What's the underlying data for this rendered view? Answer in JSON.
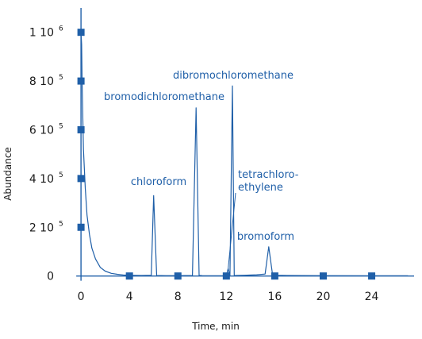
{
  "chart_data": {
    "type": "line",
    "xlabel": "Time, min",
    "ylabel": "Abundance",
    "xlim": [
      -0.4,
      27.5
    ],
    "ylim": [
      -50000,
      1100000
    ],
    "x_ticks": [
      {
        "value": 0,
        "label": "0"
      },
      {
        "value": 4,
        "label": "4"
      },
      {
        "value": 8,
        "label": "8"
      },
      {
        "value": 12,
        "label": "12"
      },
      {
        "value": 16,
        "label": "16"
      },
      {
        "value": 20,
        "label": "20"
      },
      {
        "value": 24,
        "label": "24"
      }
    ],
    "y_ticks": [
      {
        "value": 0,
        "label": "0",
        "sup": ""
      },
      {
        "value": 200000,
        "label": "2 10",
        "sup": "5"
      },
      {
        "value": 400000,
        "label": "4 10",
        "sup": "5"
      },
      {
        "value": 600000,
        "label": "6 10",
        "sup": "5"
      },
      {
        "value": 800000,
        "label": "8 10",
        "sup": "5"
      },
      {
        "value": 1000000,
        "label": "1 10",
        "sup": "6"
      }
    ],
    "series": [
      {
        "x": [
          0,
          0.05,
          0.1,
          0.2,
          0.35,
          0.5,
          0.7,
          0.9,
          1.2,
          1.6,
          2.0,
          2.5,
          3.0,
          3.5,
          4.0,
          5.0,
          5.8,
          6.0,
          6.25,
          7.0,
          8.0,
          9.2,
          9.5,
          9.75,
          10.0,
          11.0,
          12.0,
          12.15,
          12.3,
          12.5,
          12.65,
          12.8,
          13.5,
          14.5,
          15.2,
          15.5,
          15.8,
          16.2,
          17.0,
          20.0,
          24.0,
          27.0
        ],
        "y": [
          1000000,
          950000,
          780000,
          520000,
          360000,
          250000,
          170000,
          115000,
          70000,
          35000,
          20000,
          11000,
          7000,
          4500,
          3000,
          2000,
          3000,
          330000,
          2000,
          1500,
          1500,
          2000,
          690000,
          2500,
          1500,
          1200,
          1500,
          30000,
          1500,
          780000,
          2500,
          2000,
          3000,
          5000,
          8000,
          120000,
          10000,
          3000,
          2000,
          1500,
          1200,
          1000
        ]
      }
    ],
    "markers": {
      "y_axis_values": [
        1000000,
        800000,
        600000,
        400000,
        200000
      ],
      "x_axis_values": [
        4,
        8,
        12,
        16,
        20,
        24
      ]
    },
    "annotations": [
      {
        "text": "chloroform",
        "x": 6.0,
        "y": 330000
      },
      {
        "text": "bromodichloromethane",
        "x": 9.5,
        "y": 690000
      },
      {
        "text": "dibromochloromethane",
        "x": 12.5,
        "y": 780000
      },
      {
        "text": "tetrachloro-",
        "x": 12.15,
        "y": 30000
      },
      {
        "text": "ethylene",
        "x": 12.15,
        "y": 30000
      },
      {
        "text": "bromoform",
        "x": 15.5,
        "y": 120000
      }
    ],
    "colors": {
      "trace": "#1f5fa8",
      "marker": "#1f5fa8",
      "axis": "#1f5fa8",
      "text": "#1a1a1a"
    }
  }
}
